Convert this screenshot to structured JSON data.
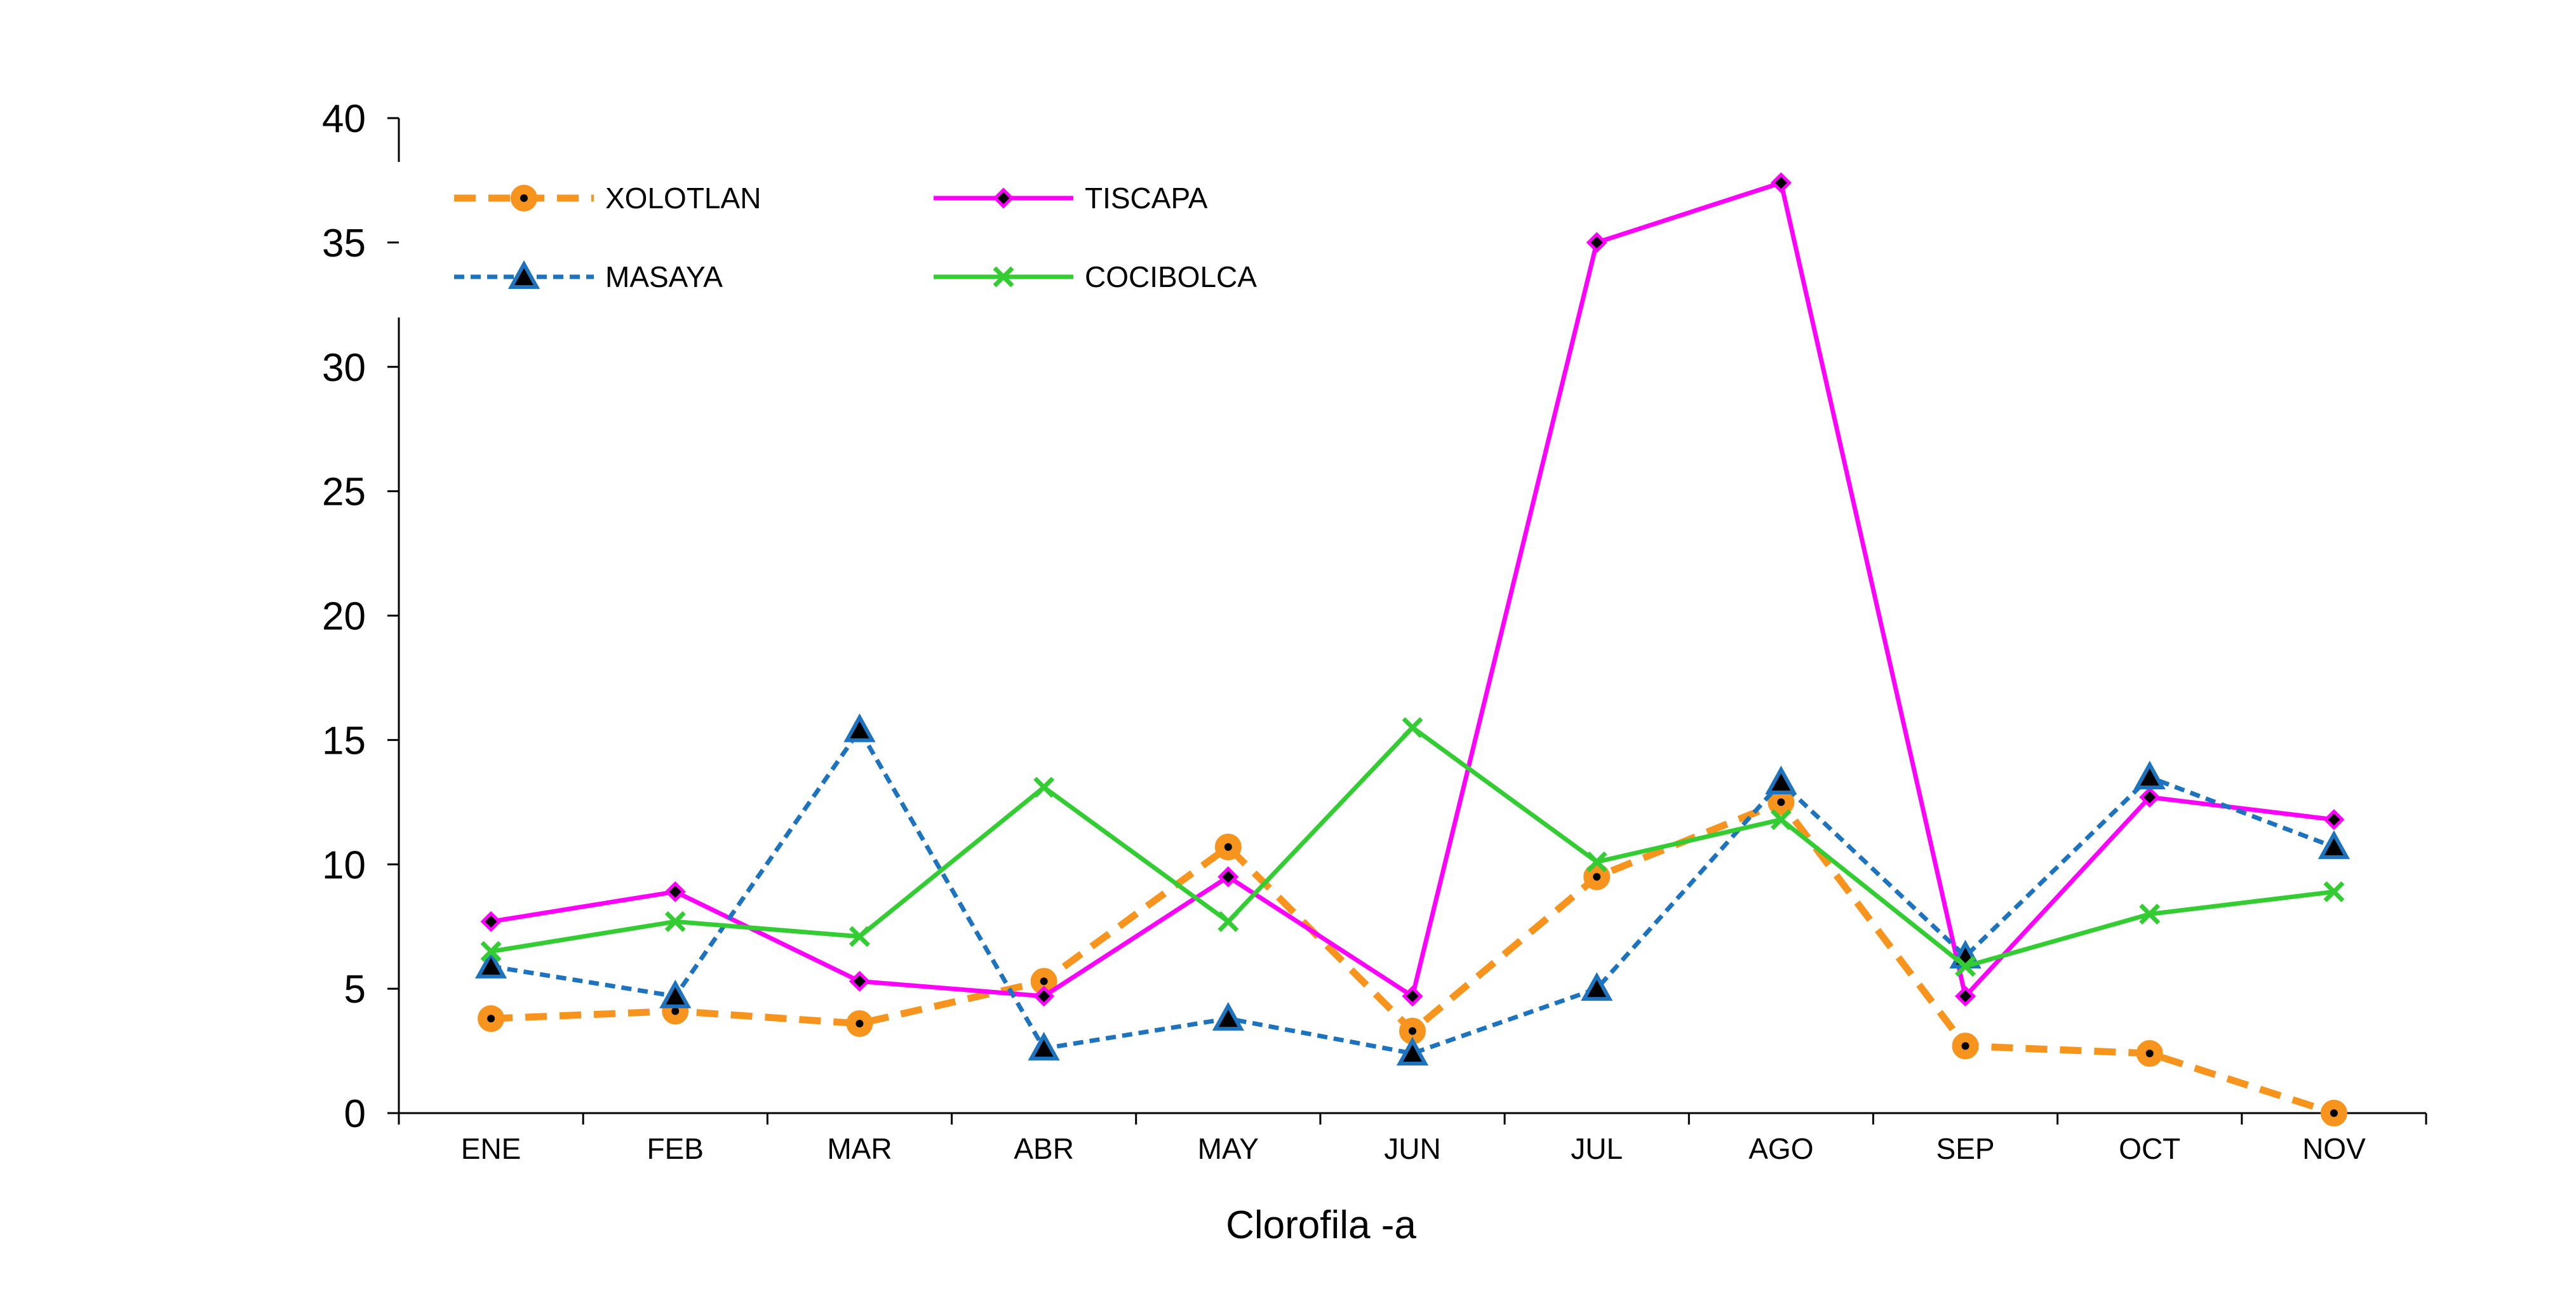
{
  "chart_data": {
    "type": "line",
    "title": "",
    "xlabel": "Clorofila -a",
    "ylabel": "",
    "categories": [
      "ENE",
      "FEB",
      "MAR",
      "ABR",
      "MAY",
      "JUN",
      "JUL",
      "AGO",
      "SEP",
      "OCT",
      "NOV"
    ],
    "ylim": [
      0,
      40
    ],
    "yticks": [
      0,
      5,
      10,
      15,
      20,
      25,
      30,
      35,
      40
    ],
    "grid": false,
    "legend_position": "top-left",
    "series": [
      {
        "name": "XOLOTLAN",
        "color": "#F7941D",
        "style": "dashed",
        "marker": "circle",
        "values": [
          3.8,
          4.1,
          3.6,
          5.3,
          10.7,
          3.3,
          9.5,
          12.5,
          2.7,
          2.4,
          0.0
        ]
      },
      {
        "name": "TISCAPA",
        "color": "#FF00FF",
        "style": "solid",
        "marker": "diamond",
        "values": [
          7.7,
          8.9,
          5.3,
          4.7,
          9.5,
          4.7,
          35.0,
          37.4,
          4.7,
          12.7,
          11.8
        ]
      },
      {
        "name": "MASAYA",
        "color": "#1E73BE",
        "style": "dotted",
        "marker": "triangle",
        "values": [
          5.9,
          4.7,
          15.4,
          2.6,
          3.8,
          2.4,
          5.0,
          13.3,
          6.3,
          13.5,
          10.7
        ]
      },
      {
        "name": "COCIBOLCA",
        "color": "#33CC33",
        "style": "solid",
        "marker": "x",
        "values": [
          6.5,
          7.7,
          7.1,
          13.1,
          7.7,
          15.5,
          10.1,
          11.8,
          5.9,
          8.0,
          8.9
        ]
      }
    ]
  }
}
